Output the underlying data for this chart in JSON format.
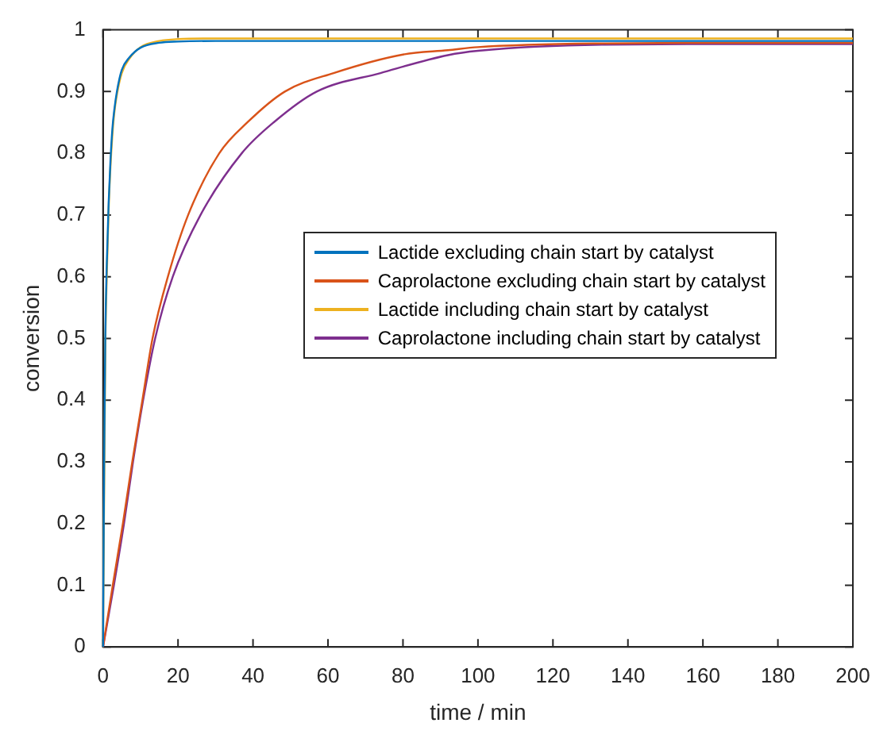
{
  "chart_data": {
    "type": "line",
    "xlabel": "time / min",
    "ylabel": "conversion",
    "xlim": [
      0,
      200
    ],
    "xticks": [
      0,
      20,
      40,
      60,
      80,
      100,
      120,
      140,
      160,
      180,
      200
    ],
    "ylim": [
      0,
      1
    ],
    "yticks": [
      0,
      0.1,
      0.2,
      0.3,
      0.4,
      0.5,
      0.6,
      0.7,
      0.8,
      0.9,
      1
    ],
    "grid": false,
    "legend": "right",
    "marker": "none",
    "line_style": "solid",
    "series": [
      {
        "name": "Lactide excluding chain start by catalyst",
        "color": "#0072bd",
        "x": [
          0,
          0.3,
          0.6,
          1,
          1.5,
          2,
          2.5,
          3,
          3.7,
          5,
          7,
          10,
          15,
          20,
          30,
          50,
          100,
          150,
          200
        ],
        "values": [
          0,
          0.3,
          0.5,
          0.62,
          0.72,
          0.79,
          0.84,
          0.87,
          0.9,
          0.935,
          0.955,
          0.971,
          0.979,
          0.981,
          0.982,
          0.982,
          0.982,
          0.982,
          0.982
        ]
      },
      {
        "name": "Caprolactone excluding chain start by catalyst",
        "color": "#d95319",
        "x": [
          0,
          2.6,
          5.3,
          7.8,
          10.5,
          13.2,
          17.3,
          22.7,
          31,
          38.5,
          48.5,
          61.5,
          80,
          92,
          100,
          133,
          170,
          200
        ],
        "values": [
          0,
          0.1,
          0.2,
          0.3,
          0.4,
          0.5,
          0.6,
          0.7,
          0.8,
          0.85,
          0.9,
          0.93,
          0.96,
          0.967,
          0.972,
          0.978,
          0.979,
          0.979
        ]
      },
      {
        "name": "Lactide including chain start by catalyst",
        "color": "#edb120",
        "x": [
          0,
          0.6,
          1,
          1.5,
          2,
          2.5,
          3,
          3.7,
          5,
          7,
          10,
          15,
          20,
          30,
          50,
          100,
          150,
          200
        ],
        "values": [
          0,
          0.48,
          0.6,
          0.71,
          0.78,
          0.83,
          0.865,
          0.895,
          0.93,
          0.953,
          0.972,
          0.982,
          0.985,
          0.986,
          0.986,
          0.986,
          0.986,
          0.986
        ]
      },
      {
        "name": "Caprolactone including chain start by catalyst",
        "color": "#7e2f8e",
        "x": [
          0,
          2.9,
          5.6,
          8,
          10.7,
          13.9,
          18.6,
          26,
          37,
          45.5,
          57,
          74,
          92,
          100,
          133,
          170,
          200
        ],
        "values": [
          0,
          0.1,
          0.2,
          0.3,
          0.4,
          0.5,
          0.6,
          0.7,
          0.8,
          0.85,
          0.9,
          0.93,
          0.959,
          0.966,
          0.976,
          0.977,
          0.977
        ]
      }
    ]
  }
}
